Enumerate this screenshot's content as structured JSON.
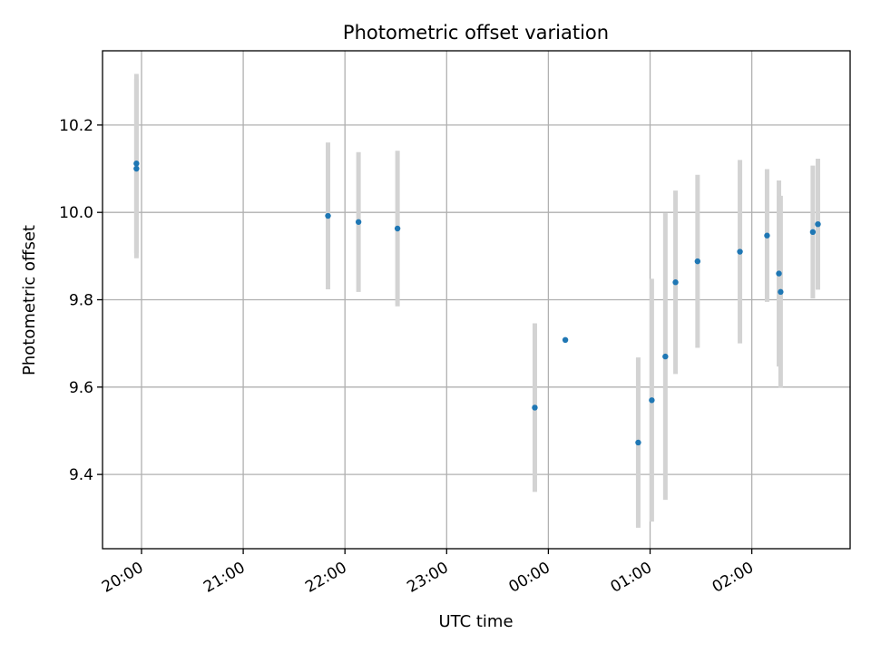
{
  "chart_data": {
    "type": "scatter",
    "title": "Photometric offset variation",
    "xlabel": "UTC time",
    "ylabel": "Photometric offset",
    "x_axis": {
      "type": "time",
      "range": [
        "2023-01-01 19:37",
        "2023-01-02 02:58"
      ],
      "ticks": [
        "2023-01-01 20:00",
        "2023-01-01 21:00",
        "2023-01-01 22:00",
        "2023-01-01 23:00",
        "2023-01-02 00:00",
        "2023-01-02 01:00",
        "2023-01-02 02:00"
      ],
      "tick_labels": [
        "20:00",
        "21:00",
        "22:00",
        "23:00",
        "00:00",
        "01:00",
        "02:00"
      ]
    },
    "y_axis": {
      "range": [
        9.23,
        10.37
      ],
      "ticks": [
        9.4,
        9.6,
        9.8,
        10.0,
        10.2
      ],
      "tick_labels": [
        "9.4",
        "9.6",
        "9.8",
        "10.0",
        "10.2"
      ]
    },
    "grid": true,
    "colors": {
      "marker": "#1f77b4",
      "errorbar": "#d3d3d3",
      "grid": "#b0b0b0"
    },
    "points": [
      {
        "t": "2023-01-01 19:57",
        "y": 10.112,
        "err": 0.205
      },
      {
        "t": "2023-01-01 19:57",
        "y": 10.1,
        "err": 0.205
      },
      {
        "t": "2023-01-01 21:50",
        "y": 9.992,
        "err": 0.168
      },
      {
        "t": "2023-01-01 22:08",
        "y": 9.978,
        "err": 0.16
      },
      {
        "t": "2023-01-01 22:31",
        "y": 9.963,
        "err": 0.178
      },
      {
        "t": "2023-01-01 23:52",
        "y": 9.553,
        "err": 0.193
      },
      {
        "t": "2023-01-02 00:10",
        "y": 9.708,
        "err": null
      },
      {
        "t": "2023-01-02 00:53",
        "y": 9.473,
        "err": 0.195
      },
      {
        "t": "2023-01-02 01:01",
        "y": 9.57,
        "err": 0.278
      },
      {
        "t": "2023-01-02 01:09",
        "y": 9.67,
        "err": 0.328
      },
      {
        "t": "2023-01-02 01:15",
        "y": 9.84,
        "err": 0.21
      },
      {
        "t": "2023-01-02 01:28",
        "y": 9.888,
        "err": 0.198
      },
      {
        "t": "2023-01-02 01:53",
        "y": 9.91,
        "err": 0.21
      },
      {
        "t": "2023-01-02 02:09",
        "y": 9.947,
        "err": 0.152
      },
      {
        "t": "2023-01-02 02:16",
        "y": 9.86,
        "err": 0.213
      },
      {
        "t": "2023-01-02 02:17",
        "y": 9.818,
        "err": 0.22
      },
      {
        "t": "2023-01-02 02:36",
        "y": 9.955,
        "err": 0.152
      },
      {
        "t": "2023-01-02 02:39",
        "y": 9.973,
        "err": 0.15
      }
    ]
  }
}
